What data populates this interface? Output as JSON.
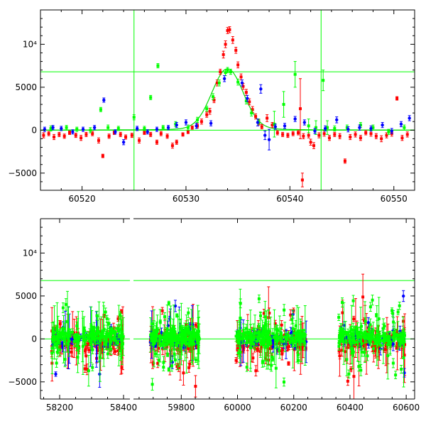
{
  "colors": {
    "red": "#ff0000",
    "green": "#00ff00",
    "blue": "#0000ff",
    "model": "#00dd00",
    "axis": "#000000",
    "background": "#ffffff"
  },
  "chart_data": [
    {
      "type": "scatter",
      "panel": "top",
      "title": "",
      "xlabel": "",
      "ylabel": "",
      "xlim": [
        60516,
        60552
      ],
      "ylim": [
        -7000,
        14000
      ],
      "x_ticks": [
        60520,
        60530,
        60540,
        60550
      ],
      "x_tick_labels": [
        "60520",
        "60530",
        "60540",
        "60550"
      ],
      "y_ticks": [
        -5000,
        0,
        5000,
        10000
      ],
      "y_tick_labels": [
        "−5000",
        "0",
        "5000",
        "10⁴"
      ],
      "grid": false,
      "legend": "none",
      "reference_lines": {
        "horizontal": [
          6800,
          0
        ],
        "vertical": [
          60525,
          60543
        ]
      },
      "model_curve": {
        "color": "green",
        "baseline": 0,
        "peak": 6900,
        "t0": 60534,
        "width": 1.5,
        "points": [
          [
            60516,
            0
          ],
          [
            60526,
            50
          ],
          [
            60528,
            100
          ],
          [
            60530,
            300
          ],
          [
            60531,
            800
          ],
          [
            60532,
            2000
          ],
          [
            60533,
            4700
          ],
          [
            60534,
            6900
          ],
          [
            60535,
            4700
          ],
          [
            60536,
            2000
          ],
          [
            60537,
            800
          ],
          [
            60538,
            300
          ],
          [
            60540,
            100
          ],
          [
            60542,
            50
          ],
          [
            60552,
            0
          ]
        ]
      },
      "series": [
        {
          "name": "",
          "color": "red",
          "points": [
            [
              60516.3,
              -600,
              300
            ],
            [
              60516.8,
              -400,
              250
            ],
            [
              60517.3,
              -800,
              300
            ],
            [
              60517.8,
              -500,
              250
            ],
            [
              60518.3,
              -700,
              250
            ],
            [
              60518.8,
              -300,
              200
            ],
            [
              60519.4,
              -600,
              250
            ],
            [
              60519.9,
              -900,
              300
            ],
            [
              60520.4,
              -500,
              250
            ],
            [
              60521.0,
              -400,
              250
            ],
            [
              60521.6,
              -1200,
              300
            ],
            [
              60522.0,
              -3000,
              200
            ],
            [
              60522.6,
              -700,
              250
            ],
            [
              60523.1,
              -300,
              200
            ],
            [
              60523.7,
              -500,
              250
            ],
            [
              60524.2,
              -800,
              250
            ],
            [
              60524.8,
              -600,
              250
            ],
            [
              60525.5,
              -1200,
              300
            ],
            [
              60526.0,
              -300,
              200
            ],
            [
              60526.6,
              -500,
              250
            ],
            [
              60527.2,
              -1400,
              250
            ],
            [
              60527.6,
              -400,
              250
            ],
            [
              60528.2,
              -700,
              250
            ],
            [
              60528.7,
              -1800,
              300
            ],
            [
              60529.1,
              -1400,
              250
            ],
            [
              60529.7,
              -500,
              200
            ],
            [
              60530.2,
              -200,
              200
            ],
            [
              60530.6,
              300,
              200
            ],
            [
              60531.1,
              500,
              250
            ],
            [
              60531.5,
              1000,
              300
            ],
            [
              60532.0,
              1800,
              300
            ],
            [
              60532.3,
              2200,
              350
            ],
            [
              60532.7,
              3500,
              300
            ],
            [
              60533.0,
              5500,
              350
            ],
            [
              60533.3,
              6800,
              300
            ],
            [
              60533.6,
              8800,
              400
            ],
            [
              60533.8,
              10000,
              400
            ],
            [
              60534.0,
              11600,
              350
            ],
            [
              60534.2,
              11700,
              350
            ],
            [
              60534.5,
              10500,
              400
            ],
            [
              60534.8,
              9300,
              350
            ],
            [
              60535.0,
              7600,
              350
            ],
            [
              60535.3,
              6200,
              350
            ],
            [
              60535.5,
              5100,
              350
            ],
            [
              60535.8,
              4400,
              350
            ],
            [
              60536.1,
              3300,
              350
            ],
            [
              60536.4,
              2400,
              350
            ],
            [
              60536.7,
              1600,
              300
            ],
            [
              60537.0,
              900,
              300
            ],
            [
              60537.3,
              400,
              250
            ],
            [
              60537.8,
              1400,
              400
            ],
            [
              60538.3,
              600,
              300
            ],
            [
              60538.8,
              -300,
              250
            ],
            [
              60539.3,
              -500,
              250
            ],
            [
              60539.8,
              -600,
              250
            ],
            [
              60540.3,
              -400,
              250
            ],
            [
              60540.8,
              -300,
              250
            ],
            [
              60541.0,
              2500,
              3500
            ],
            [
              60541.3,
              -700,
              300
            ],
            [
              60541.8,
              -600,
              300
            ],
            [
              60542.0,
              -1400,
              350
            ],
            [
              60542.3,
              -1800,
              350
            ],
            [
              60542.8,
              -600,
              300
            ],
            [
              60543.3,
              -400,
              300
            ],
            [
              60543.8,
              -900,
              300
            ],
            [
              60544.3,
              -500,
              250
            ],
            [
              60544.8,
              -700,
              300
            ],
            [
              60545.3,
              -3600,
              250
            ],
            [
              60545.8,
              -800,
              300
            ],
            [
              60546.3,
              -500,
              300
            ],
            [
              60546.8,
              -900,
              300
            ],
            [
              60547.3,
              -300,
              250
            ],
            [
              60547.8,
              -400,
              300
            ],
            [
              60548.3,
              -700,
              300
            ],
            [
              60548.8,
              -1000,
              350
            ],
            [
              60549.3,
              -600,
              300
            ],
            [
              60549.8,
              -400,
              300
            ],
            [
              60550.3,
              3700,
              200
            ],
            [
              60550.8,
              -900,
              300
            ],
            [
              60551.3,
              -500,
              300
            ],
            [
              60541.2,
              -5800,
              800
            ]
          ]
        },
        {
          "name": "",
          "color": "green",
          "points": [
            [
              60517.0,
              200,
              300
            ],
            [
              60518.5,
              300,
              250
            ],
            [
              60519.5,
              100,
              250
            ],
            [
              60520.8,
              0,
              300
            ],
            [
              60521.8,
              2400,
              250
            ],
            [
              60522.5,
              300,
              300
            ],
            [
              60523.5,
              200,
              250
            ],
            [
              60525.0,
              1500,
              300
            ],
            [
              60526.0,
              200,
              250
            ],
            [
              60526.6,
              3800,
              250
            ],
            [
              60527.3,
              7500,
              250
            ],
            [
              60527.8,
              300,
              250
            ],
            [
              60529.0,
              700,
              300
            ],
            [
              60530.2,
              300,
              300
            ],
            [
              60531.1,
              1200,
              300
            ],
            [
              60532.0,
              2500,
              300
            ],
            [
              60532.6,
              3900,
              350
            ],
            [
              60533.2,
              5500,
              350
            ],
            [
              60533.8,
              6700,
              350
            ],
            [
              60534.0,
              7000,
              300
            ],
            [
              60534.3,
              6800,
              300
            ],
            [
              60535.0,
              5600,
              350
            ],
            [
              60535.8,
              3400,
              350
            ],
            [
              60536.3,
              2000,
              350
            ],
            [
              60537.0,
              1000,
              300
            ],
            [
              60538.5,
              700,
              1500
            ],
            [
              60539.4,
              3000,
              1500
            ],
            [
              60540.5,
              6500,
              1500
            ],
            [
              60541.8,
              500,
              800
            ],
            [
              60542.5,
              300,
              800
            ],
            [
              60543.2,
              5800,
              1200
            ],
            [
              60543.6,
              300,
              800
            ],
            [
              60544.3,
              200,
              300
            ],
            [
              60545.5,
              300,
              300
            ],
            [
              60546.8,
              600,
              300
            ],
            [
              60548.0,
              300,
              300
            ],
            [
              60549.5,
              -200,
              300
            ],
            [
              60551.0,
              300,
              300
            ]
          ]
        },
        {
          "name": "",
          "color": "blue",
          "points": [
            [
              60516.4,
              100,
              250
            ],
            [
              60517.2,
              300,
              250
            ],
            [
              60518.0,
              200,
              250
            ],
            [
              60519.1,
              -200,
              250
            ],
            [
              60520.1,
              100,
              250
            ],
            [
              60521.2,
              300,
              250
            ],
            [
              60522.1,
              3500,
              250
            ],
            [
              60523.2,
              -200,
              250
            ],
            [
              60524.0,
              -1400,
              300
            ],
            [
              60525.3,
              200,
              250
            ],
            [
              60526.3,
              -200,
              250
            ],
            [
              60527.2,
              100,
              250
            ],
            [
              60528.3,
              300,
              250
            ],
            [
              60529.1,
              600,
              300
            ],
            [
              60530.0,
              900,
              300
            ],
            [
              60531.0,
              500,
              300
            ],
            [
              60532.4,
              800,
              300
            ],
            [
              60533.7,
              6000,
              350
            ],
            [
              60535.4,
              5500,
              350
            ],
            [
              60535.9,
              3700,
              350
            ],
            [
              60536.9,
              900,
              400
            ],
            [
              60537.2,
              4800,
              500
            ],
            [
              60537.6,
              -600,
              500
            ],
            [
              60538.6,
              400,
              300
            ],
            [
              60539.5,
              500,
              300
            ],
            [
              60540.5,
              1300,
              300
            ],
            [
              60541.4,
              900,
              300
            ],
            [
              60542.4,
              -100,
              300
            ],
            [
              60543.4,
              200,
              300
            ],
            [
              60544.5,
              1200,
              350
            ],
            [
              60545.6,
              100,
              300
            ],
            [
              60546.7,
              300,
              300
            ],
            [
              60547.8,
              200,
              300
            ],
            [
              60548.9,
              600,
              300
            ],
            [
              60549.8,
              -100,
              300
            ],
            [
              60550.7,
              700,
              300
            ],
            [
              60551.5,
              1400,
              300
            ],
            [
              60538.0,
              -1100,
              1200
            ]
          ]
        }
      ]
    },
    {
      "type": "scatter",
      "panel": "bottom",
      "title": "",
      "xlabel": "",
      "ylabel": "",
      "x_ticks": [
        58200,
        58400,
        59800,
        60000,
        60200,
        60400,
        60600
      ],
      "x_tick_labels": [
        "58200",
        "58400",
        "59800",
        "60000",
        "60200",
        "60400",
        "60600"
      ],
      "x_segments": [
        [
          58140,
          58420
        ],
        [
          59630,
          60630
        ]
      ],
      "ylim": [
        -7000,
        14000
      ],
      "y_ticks": [
        -5000,
        0,
        5000,
        10000
      ],
      "y_tick_labels": [
        "−5000",
        "0",
        "5000",
        "10⁴"
      ],
      "grid": false,
      "legend": "none",
      "reference_lines": {
        "horizontal": [
          6800,
          0
        ]
      },
      "seasons": [
        {
          "x_range": [
            58175,
            58400
          ],
          "baseline": 0,
          "scatter": 2500
        },
        {
          "x_range": [
            59690,
            59865
          ],
          "baseline": 0,
          "scatter": 3000
        },
        {
          "x_range": [
            59995,
            60245
          ],
          "baseline": 0,
          "scatter": 3000
        },
        {
          "x_range": [
            60360,
            60595
          ],
          "baseline": 0,
          "scatter": 3000
        }
      ],
      "series": [
        {
          "name": "",
          "color": "red"
        },
        {
          "name": "",
          "color": "green"
        },
        {
          "name": "",
          "color": "blue"
        }
      ]
    }
  ]
}
